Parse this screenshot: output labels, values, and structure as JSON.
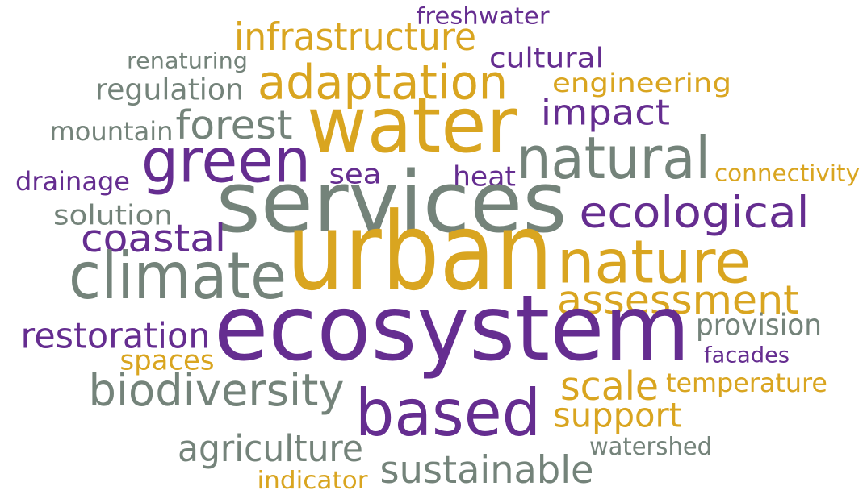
{
  "chart_data": {
    "type": "wordcloud",
    "words": [
      {
        "text": "freshwater",
        "weight": 30,
        "color": "#652d90"
      },
      {
        "text": "infrastructure",
        "weight": 50,
        "color": "#d9a520"
      },
      {
        "text": "renaturing",
        "weight": 28,
        "color": "#74837a"
      },
      {
        "text": "cultural",
        "weight": 36,
        "color": "#652d90"
      },
      {
        "text": "adaptation",
        "weight": 62,
        "color": "#d9a520"
      },
      {
        "text": "engineering",
        "weight": 34,
        "color": "#d9a520"
      },
      {
        "text": "regulation",
        "weight": 38,
        "color": "#74837a"
      },
      {
        "text": "impact",
        "weight": 46,
        "color": "#652d90"
      },
      {
        "text": "water",
        "weight": 100,
        "color": "#d9a520"
      },
      {
        "text": "mountain",
        "weight": 34,
        "color": "#74837a"
      },
      {
        "text": "forest",
        "weight": 52,
        "color": "#74837a"
      },
      {
        "text": "green",
        "weight": 80,
        "color": "#652d90"
      },
      {
        "text": "natural",
        "weight": 76,
        "color": "#74837a"
      },
      {
        "text": "drainage",
        "weight": 34,
        "color": "#652d90"
      },
      {
        "text": "sea",
        "weight": 36,
        "color": "#652d90"
      },
      {
        "text": "heat",
        "weight": 36,
        "color": "#652d90"
      },
      {
        "text": "connectivity",
        "weight": 30,
        "color": "#d9a520"
      },
      {
        "text": "services",
        "weight": 110,
        "color": "#74837a"
      },
      {
        "text": "solution",
        "weight": 36,
        "color": "#74837a"
      },
      {
        "text": "ecological",
        "weight": 56,
        "color": "#652d90"
      },
      {
        "text": "coastal",
        "weight": 50,
        "color": "#652d90"
      },
      {
        "text": "urban",
        "weight": 140,
        "color": "#d9a520"
      },
      {
        "text": "nature",
        "weight": 78,
        "color": "#d9a520"
      },
      {
        "text": "climate",
        "weight": 84,
        "color": "#74837a"
      },
      {
        "text": "assessment",
        "weight": 52,
        "color": "#d9a520"
      },
      {
        "text": "restoration",
        "weight": 46,
        "color": "#652d90"
      },
      {
        "text": "ecosystem",
        "weight": 118,
        "color": "#652d90"
      },
      {
        "text": "provision",
        "weight": 38,
        "color": "#74837a"
      },
      {
        "text": "facades",
        "weight": 28,
        "color": "#652d90"
      },
      {
        "text": "spaces",
        "weight": 36,
        "color": "#d9a520"
      },
      {
        "text": "scale",
        "weight": 52,
        "color": "#d9a520"
      },
      {
        "text": "temperature",
        "weight": 34,
        "color": "#d9a520"
      },
      {
        "text": "biodiversity",
        "weight": 58,
        "color": "#74837a"
      },
      {
        "text": "based",
        "weight": 84,
        "color": "#652d90"
      },
      {
        "text": "support",
        "weight": 44,
        "color": "#d9a520"
      },
      {
        "text": "agriculture",
        "weight": 48,
        "color": "#74837a"
      },
      {
        "text": "watershed",
        "weight": 32,
        "color": "#74837a"
      },
      {
        "text": "sustainable",
        "weight": 50,
        "color": "#74837a"
      },
      {
        "text": "indicator",
        "weight": 32,
        "color": "#d9a520"
      }
    ]
  }
}
